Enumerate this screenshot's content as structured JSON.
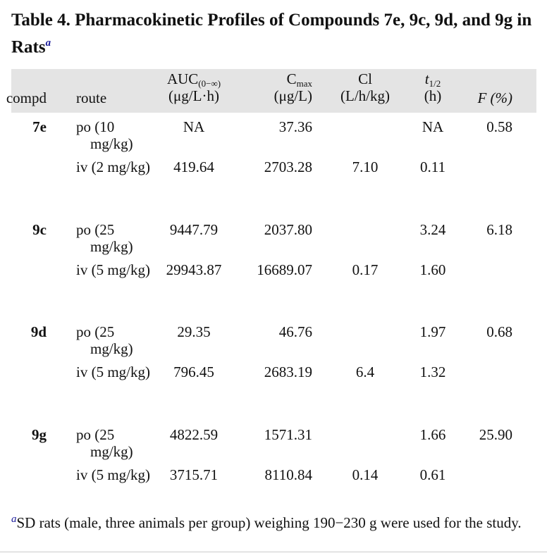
{
  "header": {
    "title": "Table 4. Pharmacokinetic Profiles of Compounds 7e, 9c, 9d, and 9g in Rats",
    "footnote_marker": "a"
  },
  "table": {
    "columns": [
      {
        "label": "compd"
      },
      {
        "label": "route"
      },
      {
        "label": "AUC",
        "sub": "(0−∞)",
        "unit": "(μg/L·h)"
      },
      {
        "label": "C",
        "sub": "max",
        "unit": "(μg/L)"
      },
      {
        "label": "Cl",
        "unit": "(L/h/kg)"
      },
      {
        "label": "t",
        "sub": "1/2",
        "unit": "(h)"
      },
      {
        "label": "F (%)"
      }
    ],
    "groups": [
      {
        "compd": "7e",
        "rows": [
          [
            "po (10 mg/kg)",
            "NA",
            "37.36",
            null,
            "NA",
            "0.58"
          ],
          [
            "iv (2 mg/kg)",
            "419.64",
            "2703.28",
            "7.10",
            "0.11",
            null
          ]
        ]
      },
      {
        "compd": "9c",
        "rows": [
          [
            "po (25 mg/kg)",
            "9447.79",
            "2037.80",
            null,
            "3.24",
            "6.18"
          ],
          [
            "iv (5 mg/kg)",
            "29943.87",
            "16689.07",
            "0.17",
            "1.60",
            null
          ]
        ]
      },
      {
        "compd": "9d",
        "rows": [
          [
            "po (25 mg/kg)",
            "29.35",
            "46.76",
            null,
            "1.97",
            "0.68"
          ],
          [
            "iv (5 mg/kg)",
            "796.45",
            "2683.19",
            "6.4",
            "1.32",
            null
          ]
        ]
      },
      {
        "compd": "9g",
        "rows": [
          [
            "po (25 mg/kg)",
            "4822.59",
            "1571.31",
            null,
            "1.66",
            "25.90"
          ],
          [
            "iv (5 mg/kg)",
            "3715.71",
            "8110.84",
            "0.14",
            "0.61",
            null
          ]
        ]
      }
    ]
  },
  "footnote": {
    "marker": "a",
    "text": "SD rats (male, three animals per group) weighing 190−230 g were used for the study."
  }
}
